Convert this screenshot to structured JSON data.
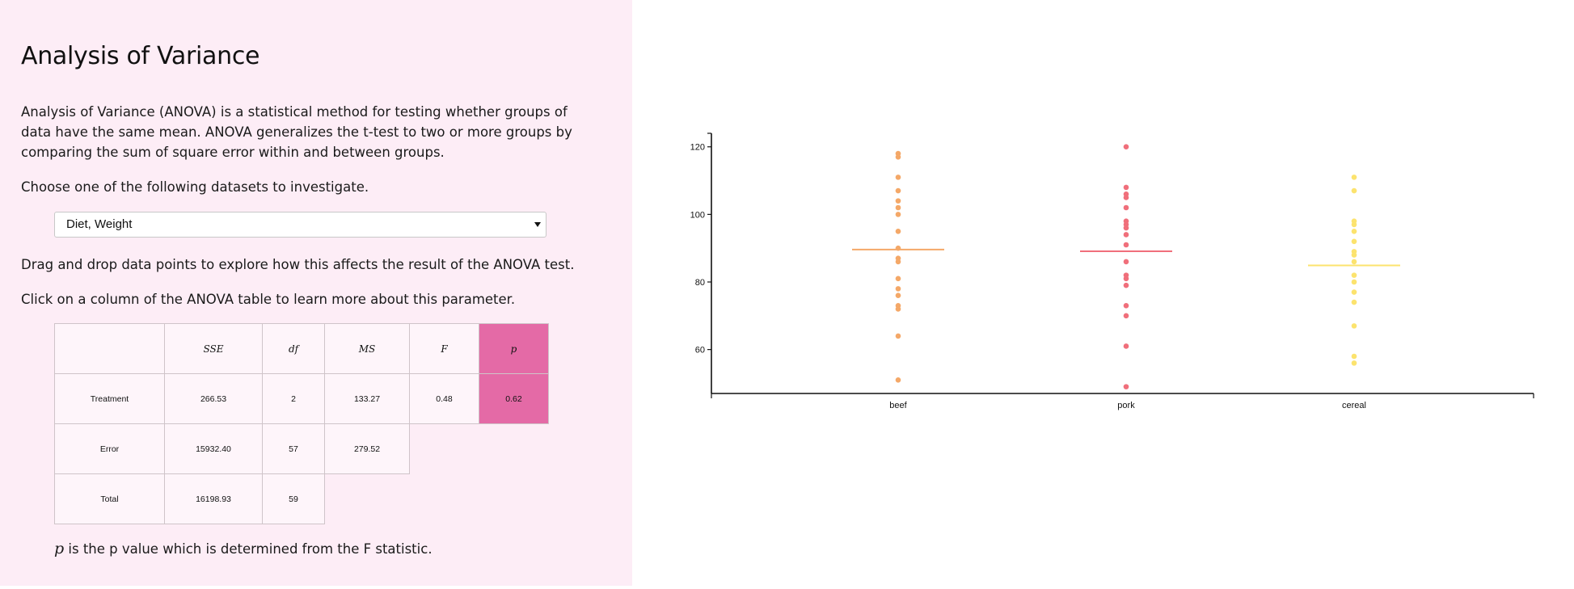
{
  "page": {
    "title": "Analysis of Variance",
    "intro": "Analysis of Variance (ANOVA) is a statistical method for testing whether groups of data have the same mean. ANOVA generalizes the t-test to two or more groups by comparing the sum of square error within and between groups.",
    "choose_text": "Choose one of the following datasets to investigate.",
    "drag_text": "Drag and drop data points to explore how this affects the result of the ANOVA test.",
    "click_text": "Click on a column of the ANOVA table to learn more about this parameter.",
    "footnote_symbol": "p",
    "footnote_text": " is the p value which is determined from the F statistic."
  },
  "dataset_select": {
    "selected": "Diet, Weight"
  },
  "anova_table": {
    "headers": [
      "SSE",
      "df",
      "MS",
      "F",
      "p"
    ],
    "highlighted_column": "p",
    "rows": [
      {
        "label": "Treatment",
        "sse": "266.53",
        "df": "2",
        "ms": "133.27",
        "f": "0.48",
        "p": "0.62"
      },
      {
        "label": "Error",
        "sse": "15932.40",
        "df": "57",
        "ms": "279.52"
      },
      {
        "label": "Total",
        "sse": "16198.93",
        "df": "59"
      }
    ]
  },
  "colors": {
    "beef": "#f4a868",
    "pork": "#f06f7b",
    "cereal": "#fce36e",
    "highlight": "#e46aa6",
    "panel": "#fdedf6"
  },
  "chart_data": {
    "type": "scatter",
    "categories": [
      "beef",
      "pork",
      "cereal"
    ],
    "ylim": [
      47,
      124
    ],
    "yticks": [
      60,
      80,
      100,
      120
    ],
    "series": [
      {
        "category": "beef",
        "mean": 89.6,
        "values": [
          118,
          117,
          111,
          107,
          104,
          102,
          100,
          95,
          90,
          87,
          86,
          81,
          78,
          76,
          73,
          72,
          64,
          51
        ]
      },
      {
        "category": "pork",
        "mean": 89.1,
        "values": [
          120,
          108,
          106,
          105,
          102,
          98,
          97,
          96,
          94,
          91,
          86,
          82,
          81,
          79,
          73,
          70,
          61,
          49
        ]
      },
      {
        "category": "cereal",
        "mean": 84.9,
        "values": [
          111,
          107,
          98,
          97,
          95,
          92,
          89,
          88,
          86,
          82,
          80,
          77,
          74,
          67,
          58,
          56
        ]
      }
    ]
  }
}
